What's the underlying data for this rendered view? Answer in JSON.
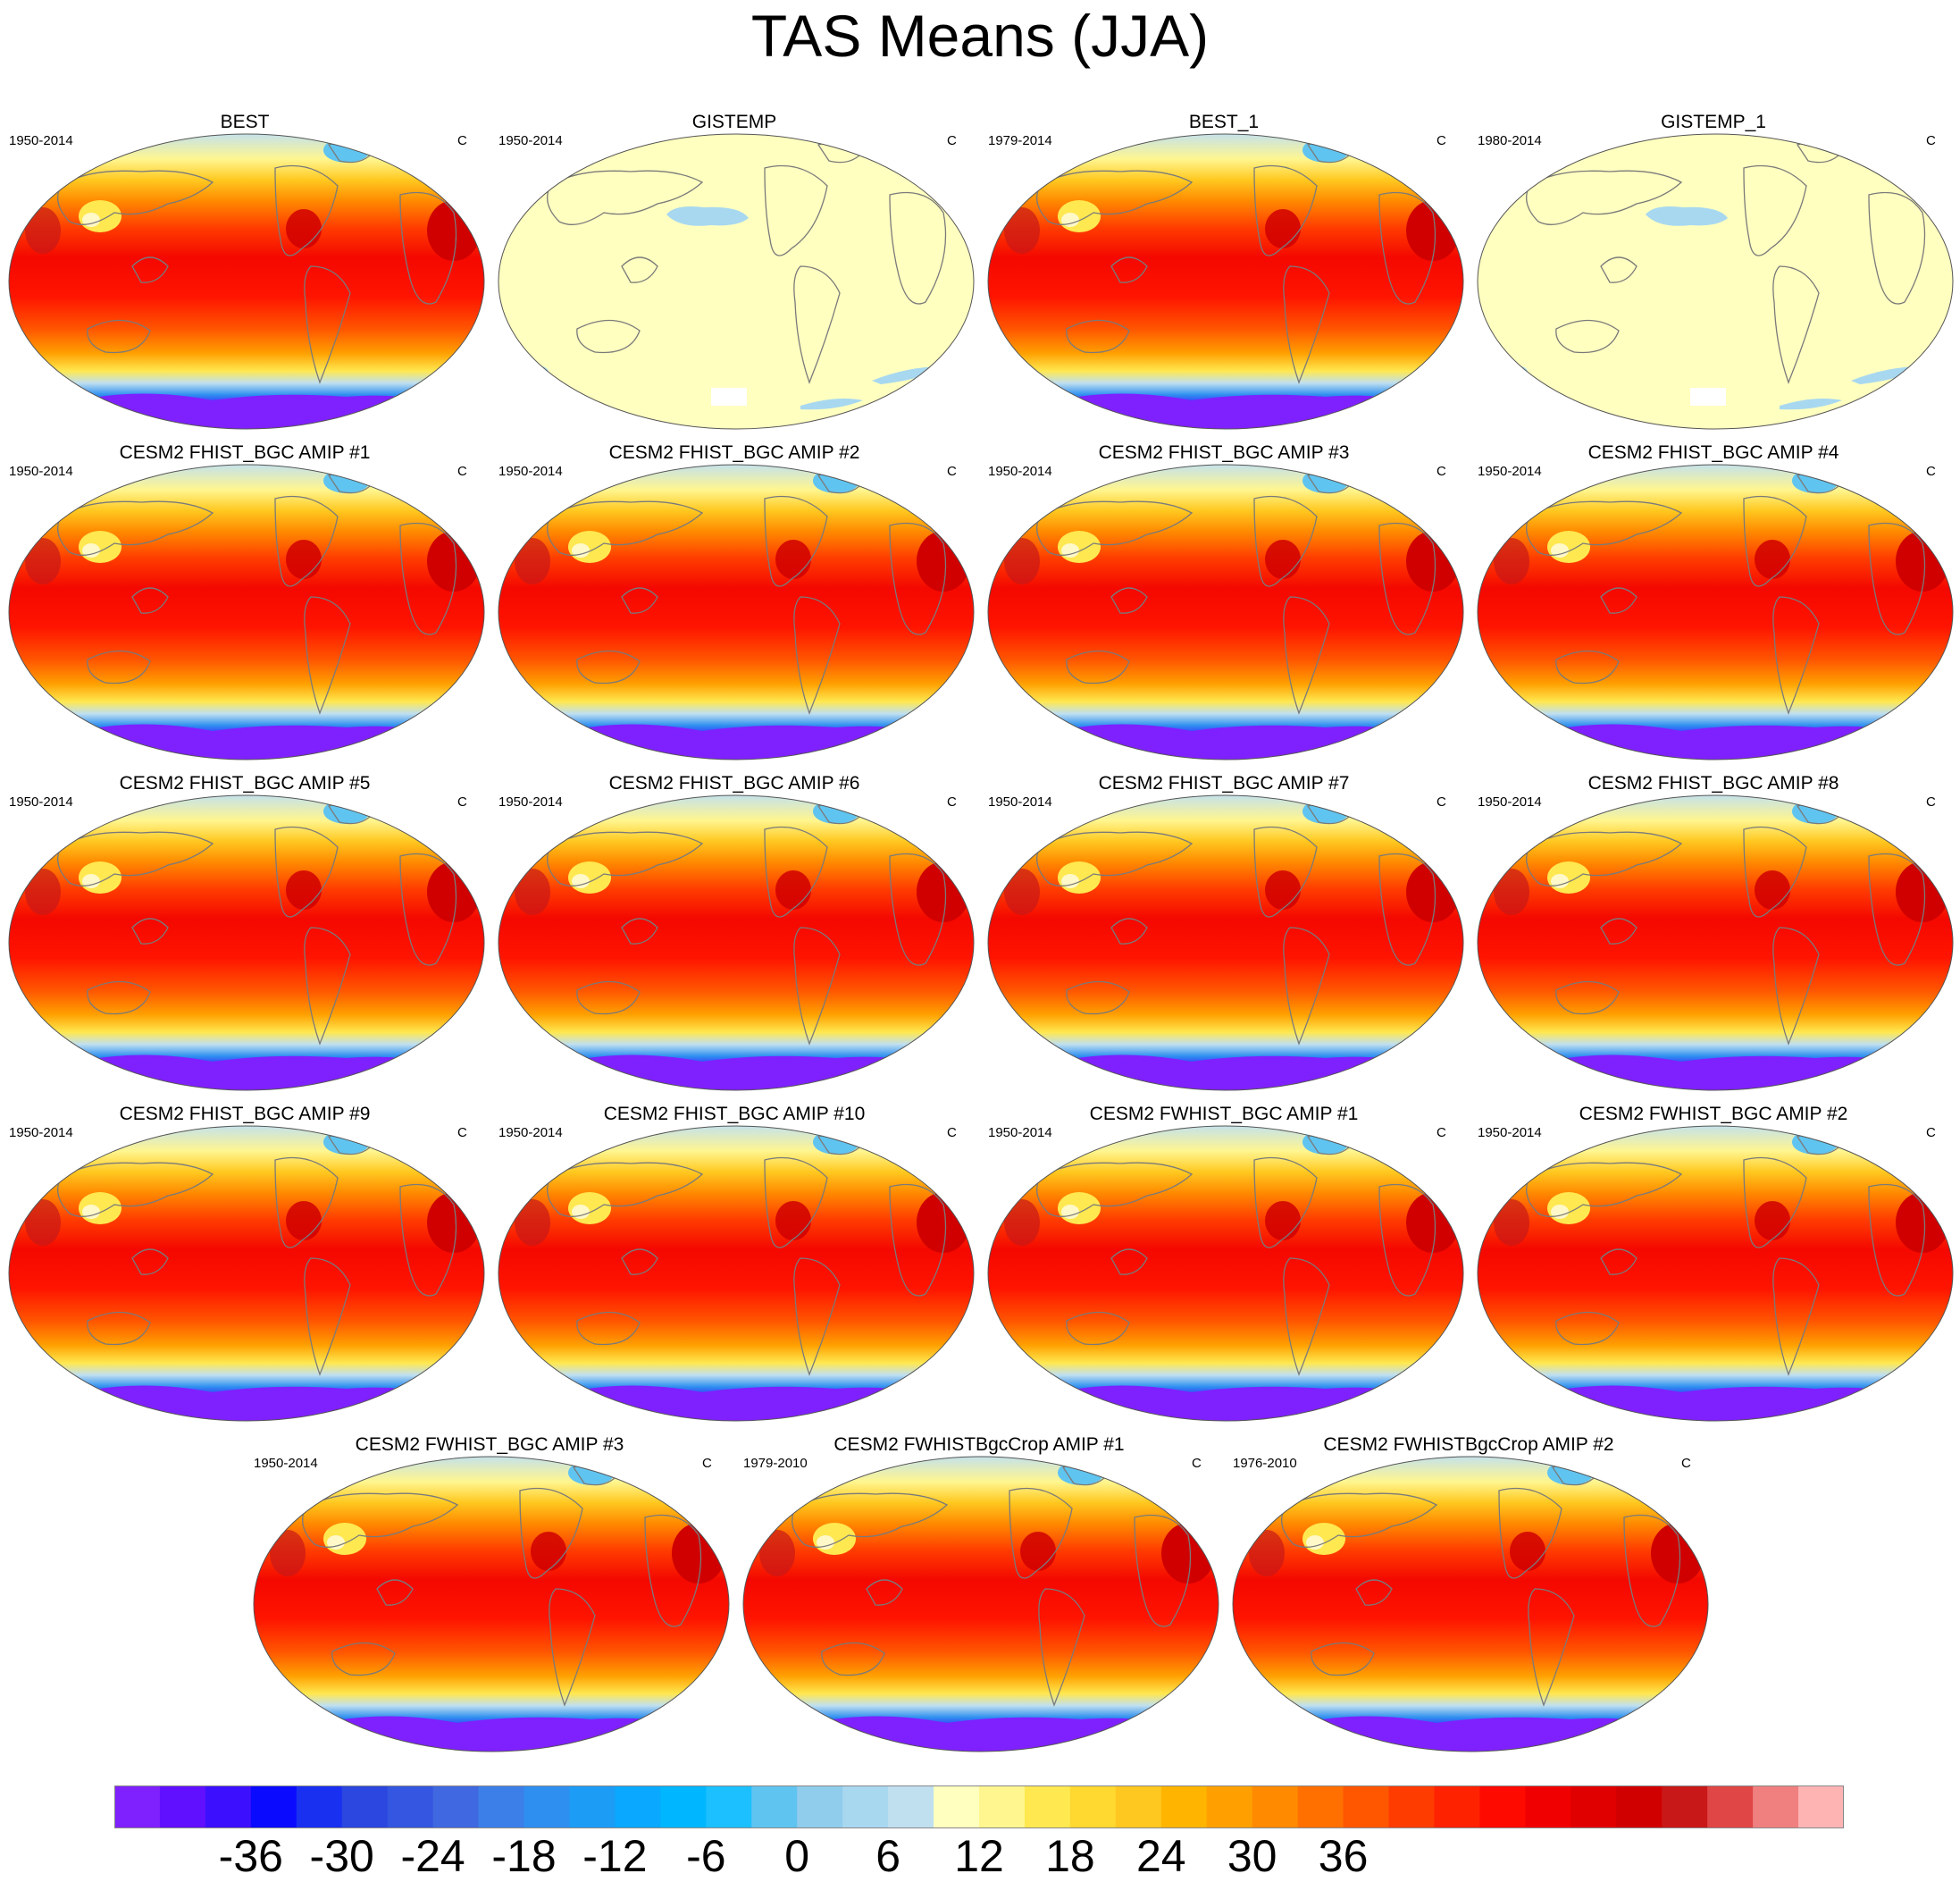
{
  "title": "TAS Means (JJA)",
  "units": "C",
  "panels": [
    {
      "title": "BEST",
      "years": "1950-2014",
      "style": "full"
    },
    {
      "title": "GISTEMP",
      "years": "1950-2014",
      "style": "anomaly"
    },
    {
      "title": "BEST_1",
      "years": "1979-2014",
      "style": "full"
    },
    {
      "title": "GISTEMP_1",
      "years": "1980-2014",
      "style": "anomaly"
    },
    {
      "title": "CESM2 FHIST_BGC AMIP #1",
      "years": "1950-2014",
      "style": "full"
    },
    {
      "title": "CESM2 FHIST_BGC AMIP #2",
      "years": "1950-2014",
      "style": "full"
    },
    {
      "title": "CESM2 FHIST_BGC AMIP #3",
      "years": "1950-2014",
      "style": "full"
    },
    {
      "title": "CESM2 FHIST_BGC AMIP #4",
      "years": "1950-2014",
      "style": "full"
    },
    {
      "title": "CESM2 FHIST_BGC AMIP #5",
      "years": "1950-2014",
      "style": "full"
    },
    {
      "title": "CESM2 FHIST_BGC AMIP #6",
      "years": "1950-2014",
      "style": "full"
    },
    {
      "title": "CESM2 FHIST_BGC AMIP #7",
      "years": "1950-2014",
      "style": "full"
    },
    {
      "title": "CESM2 FHIST_BGC AMIP #8",
      "years": "1950-2014",
      "style": "full"
    },
    {
      "title": "CESM2 FHIST_BGC AMIP #9",
      "years": "1950-2014",
      "style": "full"
    },
    {
      "title": "CESM2 FHIST_BGC AMIP #10",
      "years": "1950-2014",
      "style": "full"
    },
    {
      "title": "CESM2 FWHIST_BGC AMIP #1",
      "years": "1950-2014",
      "style": "full"
    },
    {
      "title": "CESM2 FWHIST_BGC AMIP #2",
      "years": "1950-2014",
      "style": "full"
    },
    {
      "title": "CESM2 FWHIST_BGC AMIP #3",
      "years": "1950-2014",
      "style": "full"
    },
    {
      "title": "CESM2 FWHISTBgcCrop AMIP #1",
      "years": "1979-2010",
      "style": "full"
    },
    {
      "title": "CESM2 FWHISTBgcCrop AMIP #2",
      "years": "1976-2010",
      "style": "full"
    }
  ],
  "chart_data": {
    "type": "heatmap",
    "title": "TAS Means (JJA)",
    "units": "C",
    "levels": [
      -42,
      -39,
      -36,
      -33,
      -30,
      -27,
      -24,
      -21,
      -18,
      -15,
      -12,
      -9,
      -6,
      -3,
      0,
      3,
      6,
      9,
      12,
      15,
      18,
      21,
      24,
      27,
      30,
      33,
      36,
      39,
      42
    ],
    "colorbar_labels": [
      "-36",
      "-30",
      "-24",
      "-18",
      "-12",
      "-6",
      "0",
      "6",
      "12",
      "18",
      "24",
      "30",
      "36"
    ],
    "colorbar_label_values": [
      -36,
      -30,
      -24,
      -18,
      -12,
      -6,
      0,
      6,
      12,
      18,
      24,
      30,
      36
    ],
    "colors": [
      "#7f20ff",
      "#6010ff",
      "#3c10ff",
      "#0a0aff",
      "#1a30f0",
      "#2c46e0",
      "#3456e0",
      "#4068e0",
      "#3c7fe8",
      "#2e8ff0",
      "#1c9cf5",
      "#0aa8ff",
      "#00b6ff",
      "#1cc0ff",
      "#60c4f0",
      "#90ccec",
      "#a8d8f0",
      "#c0e0f0",
      "#ffffc0",
      "#fff690",
      "#ffe850",
      "#ffd830",
      "#ffc820",
      "#ffb400",
      "#ffa000",
      "#ff8a00",
      "#ff7000",
      "#ff5600",
      "#ff3c00",
      "#ff2200",
      "#ff0a00",
      "#f00000",
      "#e00000",
      "#d00000",
      "#c81818",
      "#e04646",
      "#f08080",
      "#ffb4b4"
    ]
  }
}
